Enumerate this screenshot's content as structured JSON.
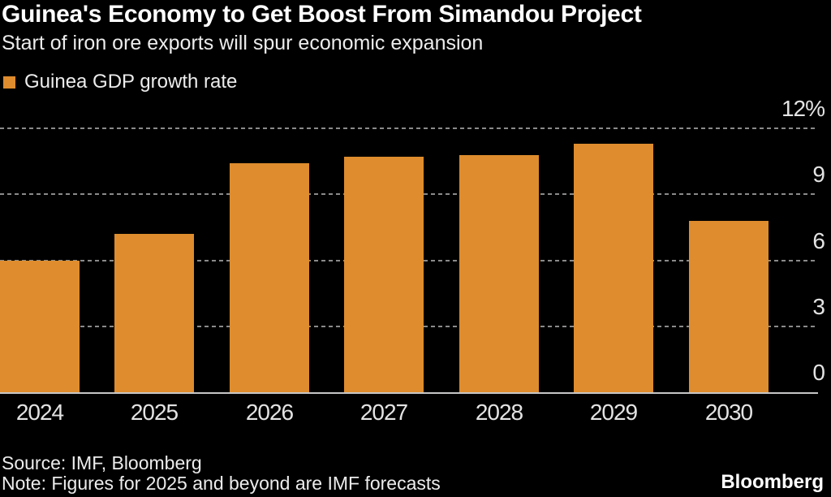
{
  "header": {
    "title": "Guinea's Economy to Get Boost From Simandou Project",
    "subtitle": "Start of iron ore exports will spur economic expansion"
  },
  "legend": {
    "label": "Guinea GDP growth rate"
  },
  "chart_data": {
    "type": "bar",
    "title": "Guinea's Economy to Get Boost From Simandou Project",
    "subtitle": "Start of iron ore exports will spur economic expansion",
    "series_name": "Guinea GDP growth rate",
    "categories": [
      "2024",
      "2025",
      "2026",
      "2027",
      "2028",
      "2029",
      "2030"
    ],
    "values": [
      6.0,
      7.2,
      10.4,
      10.7,
      10.8,
      11.3,
      7.8
    ],
    "unit": "%",
    "xlabel": "",
    "ylabel": "",
    "ylim": [
      0,
      12
    ],
    "yticks": [
      0,
      3,
      6,
      9,
      12
    ],
    "ytick_labels": [
      "0",
      "3",
      "6",
      "9",
      "12%"
    ],
    "ytick_side": "right",
    "grid": "horizontal-dotted",
    "legend_position": "top-left",
    "note": "Figures for 2025 and beyond are IMF forecasts"
  },
  "footer": {
    "source": "Source: IMF, Bloomberg",
    "note": "Note: Figures for 2025 and beyond are IMF forecasts",
    "brand": "Bloomberg"
  },
  "colors": {
    "background": "#000000",
    "bar": "#DE8C2D",
    "gridline": "#8A8A8A",
    "baseline": "#C6C6C6",
    "title_text": "#FFFFFF",
    "body_text": "#ECECEC",
    "tick_text": "#E3E3E3"
  }
}
